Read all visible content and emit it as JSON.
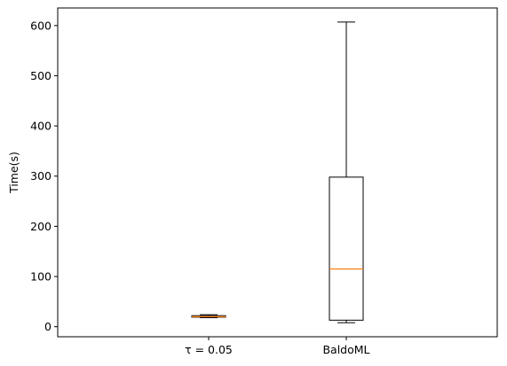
{
  "chart_data": {
    "type": "box",
    "title": "",
    "xlabel": "",
    "ylabel": "Time(s)",
    "ylim": [
      -20,
      635
    ],
    "yticks": [
      0,
      100,
      200,
      300,
      400,
      500,
      600
    ],
    "grid": false,
    "categories": [
      "τ = 0.05",
      "BaldoML"
    ],
    "boxes": [
      {
        "label": "τ = 0.05",
        "whisker_low": 18,
        "q1": 19,
        "median": 20,
        "q3": 22,
        "whisker_high": 24
      },
      {
        "label": "BaldoML",
        "whisker_low": 8,
        "q1": 13,
        "median": 115,
        "q3": 298,
        "whisker_high": 607
      }
    ],
    "colors": {
      "box": "#000000",
      "median": "#ff7f0e"
    }
  }
}
